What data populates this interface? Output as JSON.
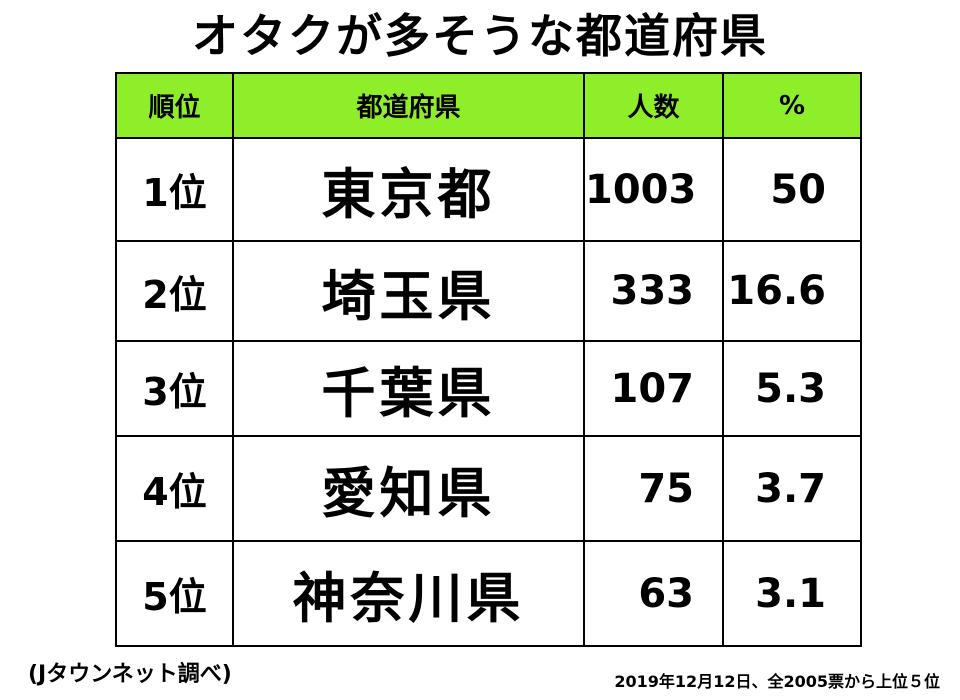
{
  "title": "オタクが多そうな都道府県",
  "table": {
    "headers": [
      "順位",
      "都道府県",
      "人数",
      "%"
    ],
    "rows": [
      [
        "1位",
        "東京都",
        "1003",
        "50"
      ],
      [
        "2位",
        "埼玉県",
        "333",
        "16.6"
      ],
      [
        "3位",
        "千葉県",
        "107",
        "5.3"
      ],
      [
        "4位",
        "愛知県",
        "75",
        "3.7"
      ],
      [
        "5位",
        "神奈川県",
        "63",
        "3.1"
      ]
    ]
  },
  "footer": {
    "source": "(Jタウンネット調べ)",
    "note": "2019年12月12日、全2005票から上位５位"
  }
}
